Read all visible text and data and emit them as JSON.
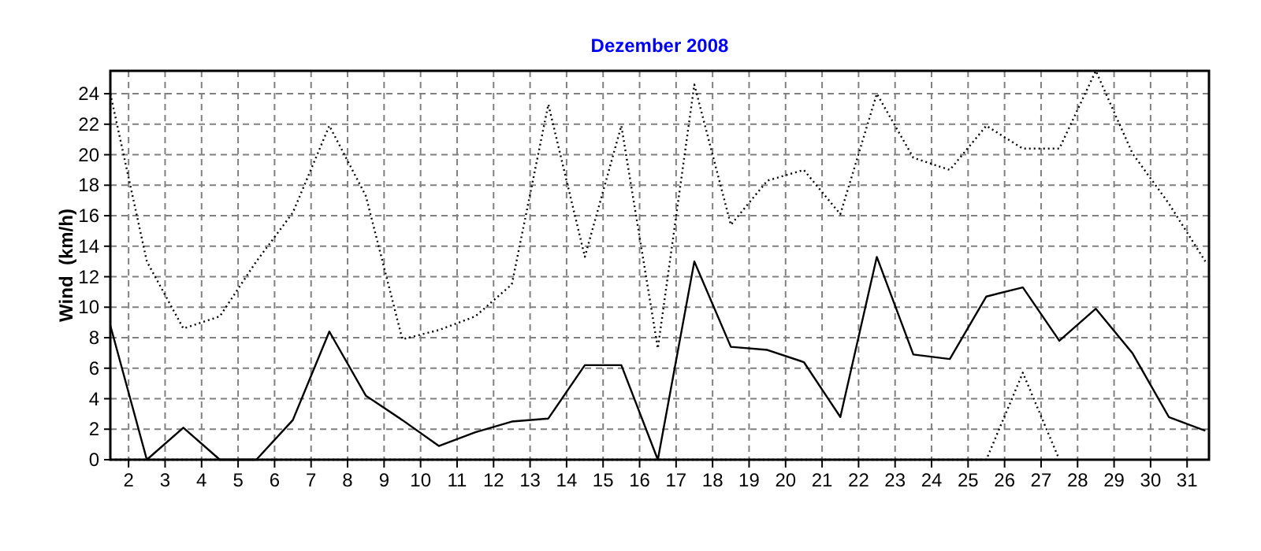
{
  "chart_data": {
    "type": "line",
    "title": "Dezember 2008",
    "ylabel": "Wind  (km/h)",
    "x": [
      1.5,
      2.5,
      3.5,
      4.5,
      5.5,
      6.5,
      7.5,
      8.5,
      9.5,
      10.5,
      11.5,
      12.5,
      13.5,
      14.5,
      15.5,
      16.5,
      17.5,
      18.5,
      19.5,
      20.5,
      21.5,
      22.5,
      23.5,
      24.5,
      25.5,
      26.5,
      27.5,
      28.5,
      29.5,
      30.5,
      31.5
    ],
    "series": [
      {
        "color": "#000000",
        "line_style": "solid",
        "values": [
          8.8,
          0,
          2.1,
          0,
          0,
          2.6,
          8.4,
          4.2,
          2.6,
          0.9,
          1.8,
          2.5,
          2.7,
          6.2,
          6.2,
          0,
          13.0,
          7.4,
          7.2,
          6.4,
          2.8,
          13.3,
          6.9,
          6.6,
          10.7,
          11.3,
          7.8,
          9.9,
          7.0,
          2.8,
          1.9
        ]
      },
      {
        "color": "#000000",
        "line_style": "dotted",
        "values": [
          24.0,
          13.0,
          8.6,
          9.4,
          13.0,
          16.2,
          21.9,
          17.3,
          7.9,
          8.5,
          9.4,
          11.5,
          23.3,
          13.3,
          21.9,
          7.3,
          24.6,
          15.4,
          18.3,
          19.0,
          16.1,
          24.0,
          19.8,
          19.0,
          21.9,
          20.4,
          20.4,
          25.5,
          20.1,
          16.8,
          13.0
        ]
      },
      {
        "color": "#000000",
        "line_style": "dotted",
        "values": [
          0,
          0,
          0,
          0,
          0,
          0,
          0,
          0,
          0,
          0,
          0,
          0,
          0,
          0,
          0,
          0,
          0,
          0,
          0,
          0,
          0,
          0,
          0,
          0,
          0,
          5.7,
          0,
          null,
          null,
          null,
          null
        ]
      }
    ],
    "xlim": [
      1.5,
      31.6
    ],
    "xticks": [
      2,
      3,
      4,
      5,
      6,
      7,
      8,
      9,
      10,
      11,
      12,
      13,
      14,
      15,
      16,
      17,
      18,
      19,
      20,
      21,
      22,
      23,
      24,
      25,
      26,
      27,
      28,
      29,
      30,
      31
    ],
    "ylim": [
      0,
      25.5
    ],
    "yticks": [
      0,
      2,
      4,
      6,
      8,
      10,
      12,
      14,
      16,
      18,
      20,
      22,
      24
    ],
    "grid": true
  }
}
